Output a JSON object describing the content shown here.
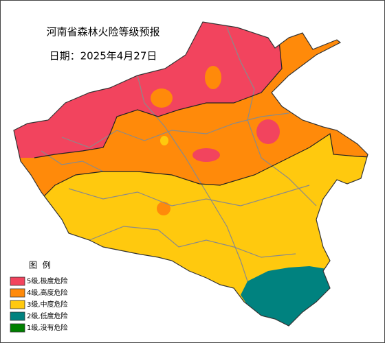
{
  "header": {
    "title": "河南省森林火险等级预报",
    "date": "日期：2025年4月27日"
  },
  "legend": {
    "title": "图  例",
    "items": [
      {
        "label": "5级,极度危险",
        "color": "#f2445e"
      },
      {
        "label": "4级,高度危险",
        "color": "#ff8a0a"
      },
      {
        "label": "3级,中度危险",
        "color": "#ffc90e"
      },
      {
        "label": "2级,低度危险",
        "color": "#00827f"
      },
      {
        "label": "1级,没有危险",
        "color": "#008000"
      }
    ]
  }
}
